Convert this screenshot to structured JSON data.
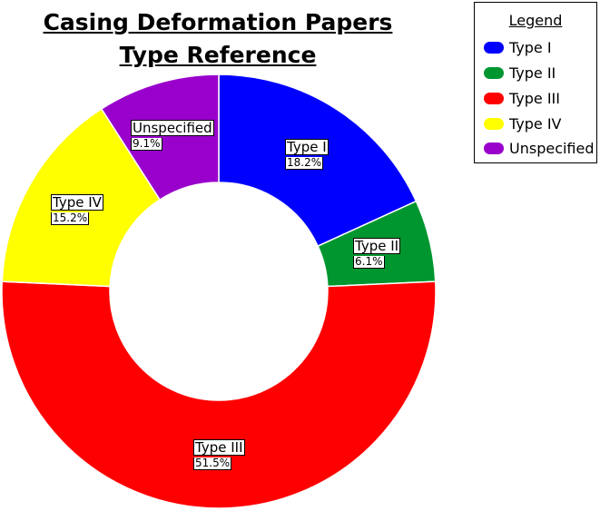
{
  "title_line1": "Casing Deformation Papers",
  "title_line2": "Type Reference",
  "legend": {
    "title": "Legend",
    "placement": "top-right",
    "items": [
      {
        "label": "Type I",
        "color": "#0000FF"
      },
      {
        "label": "Type II",
        "color": "#00962F"
      },
      {
        "label": "Type III",
        "color": "#FF0000"
      },
      {
        "label": "Type IV",
        "color": "#FFFF00"
      },
      {
        "label": "Unspecified",
        "color": "#9900CC"
      }
    ]
  },
  "chart_data": {
    "type": "pie",
    "variant": "donut",
    "title": "Casing Deformation Papers Type Reference",
    "categories": [
      "Type I",
      "Type II",
      "Type III",
      "Type IV",
      "Unspecified"
    ],
    "values": [
      18.2,
      6.1,
      51.5,
      15.2,
      9.1
    ],
    "value_labels": [
      "18.2%",
      "6.1%",
      "51.5%",
      "15.2%",
      "9.1%"
    ],
    "colors": [
      "#0000FF",
      "#00962F",
      "#FF0000",
      "#FFFF00",
      "#9900CC"
    ],
    "start": "top",
    "direction": "clockwise"
  }
}
